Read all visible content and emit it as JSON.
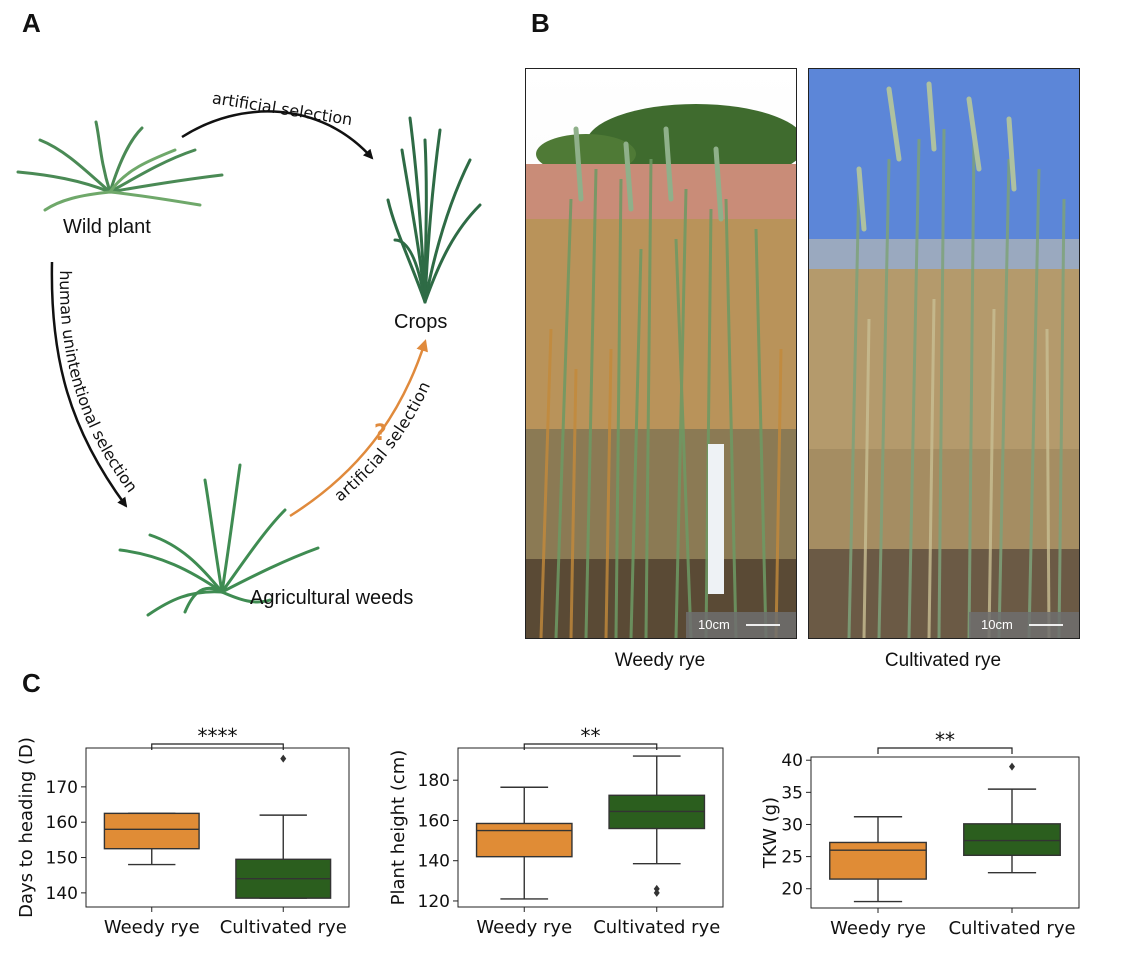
{
  "panel_labels": {
    "a": "A",
    "b": "B",
    "c": "C"
  },
  "diagram": {
    "wild_plant": "Wild plant",
    "crops": "Crops",
    "agricultural_weeds": "Agricultural weeds",
    "arrow_top": "artificial selection",
    "arrow_left": "human unintentional selection",
    "arrow_right": "artificial selection",
    "question": "?",
    "colors": {
      "black_arrow": "#111111",
      "orange_arrow": "#E08A3C",
      "plant_green": "#3E7D4F"
    }
  },
  "photos": {
    "left_caption": "Weedy rye",
    "right_caption": "Cultivated rye",
    "scale_label": "10cm"
  },
  "chart_data": [
    {
      "type": "box",
      "ylabel": "Days to heading (D)",
      "categories": [
        "Weedy rye",
        "Cultivated rye"
      ],
      "ylim": [
        136,
        181
      ],
      "yticks": [
        140,
        150,
        160,
        170
      ],
      "boxes": [
        {
          "whislo": 148,
          "q1": 152.5,
          "med": 158,
          "q3": 162.5,
          "whishi": 162.5,
          "fliers": [],
          "color": "#E08C36"
        },
        {
          "whislo": 138.5,
          "q1": 138.5,
          "med": 144,
          "q3": 149.5,
          "whishi": 162,
          "fliers": [
            178
          ],
          "color": "#2B5E1E"
        }
      ],
      "significance": "****"
    },
    {
      "type": "box",
      "ylabel": "Plant height (cm)",
      "categories": [
        "Weedy rye",
        "Cultivated rye"
      ],
      "ylim": [
        117,
        196
      ],
      "yticks": [
        120,
        140,
        160,
        180
      ],
      "boxes": [
        {
          "whislo": 121,
          "q1": 142,
          "med": 155,
          "q3": 158.5,
          "whishi": 176.5,
          "fliers": [],
          "color": "#E08C36"
        },
        {
          "whislo": 138.5,
          "q1": 156,
          "med": 164.5,
          "q3": 172.5,
          "whishi": 192,
          "fliers": [
            124,
            126
          ],
          "color": "#2B5E1E"
        }
      ],
      "significance": "**"
    },
    {
      "type": "box",
      "ylabel": "TKW (g)",
      "categories": [
        "Weedy rye",
        "Cultivated rye"
      ],
      "ylim": [
        17,
        40.5
      ],
      "yticks": [
        20,
        25,
        30,
        35,
        40
      ],
      "boxes": [
        {
          "whislo": 18,
          "q1": 21.5,
          "med": 26,
          "q3": 27.2,
          "whishi": 31.2,
          "fliers": [],
          "color": "#E08C36"
        },
        {
          "whislo": 22.5,
          "q1": 25.2,
          "med": 27.5,
          "q3": 30.1,
          "whishi": 35.5,
          "fliers": [
            39
          ],
          "color": "#2B5E1E"
        }
      ],
      "significance": "**"
    }
  ]
}
